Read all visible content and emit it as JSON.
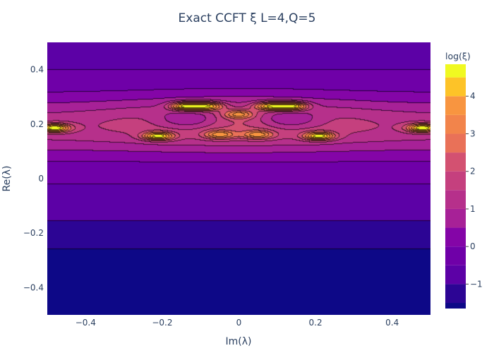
{
  "chart_data": {
    "type": "contour",
    "title": "Exact CCFT ξ L=4,Q=5",
    "xlabel": "Im(λ)",
    "ylabel": "Re(λ)",
    "xlim": [
      -0.5,
      0.5
    ],
    "ylim": [
      -0.5,
      0.5
    ],
    "x_ticks": [
      {
        "value": -0.4,
        "label": "−0.4"
      },
      {
        "value": -0.2,
        "label": "−0.2"
      },
      {
        "value": 0,
        "label": "0"
      },
      {
        "value": 0.2,
        "label": "0.2"
      },
      {
        "value": 0.4,
        "label": "0.4"
      }
    ],
    "y_ticks": [
      {
        "value": 0.4,
        "label": "0.4"
      },
      {
        "value": 0.2,
        "label": "0.2"
      },
      {
        "value": 0,
        "label": "0"
      },
      {
        "value": -0.2,
        "label": "−0.2"
      },
      {
        "value": -0.4,
        "label": "−0.4"
      }
    ],
    "colorbar": {
      "title": "log(ξ)",
      "range": [
        -1.65,
        4.85
      ],
      "ticks": [
        {
          "value": -1,
          "label": "−1"
        },
        {
          "value": 0,
          "label": "0"
        },
        {
          "value": 1,
          "label": "1"
        },
        {
          "value": 2,
          "label": "2"
        },
        {
          "value": 3,
          "label": "3"
        },
        {
          "value": 4,
          "label": "4"
        }
      ]
    },
    "contour_start": -1.5,
    "contour_step": 0.5,
    "contour_levels": 13,
    "colorscale": [
      "#0d0887",
      "#2c0594",
      "#46039f",
      "#5c01a6",
      "#6f00a8",
      "#8405a7",
      "#9511a1",
      "#a72197",
      "#b6308b",
      "#c5407e",
      "#d35171",
      "#de6164",
      "#e97158",
      "#f2844b",
      "#f89540",
      "#fca835",
      "#fdc328",
      "#f0f921"
    ],
    "peaks": [
      {
        "x": -0.48,
        "y": 0.185,
        "log_xi": 4.5
      },
      {
        "x": 0.48,
        "y": 0.185,
        "log_xi": 4.5
      },
      {
        "x": -0.14,
        "y": 0.265,
        "log_xi": 4.4
      },
      {
        "x": -0.08,
        "y": 0.265,
        "log_xi": 4.0
      },
      {
        "x": 0.08,
        "y": 0.265,
        "log_xi": 4.0
      },
      {
        "x": 0.14,
        "y": 0.265,
        "log_xi": 4.4
      },
      {
        "x": -0.21,
        "y": 0.155,
        "log_xi": 4.2
      },
      {
        "x": 0.21,
        "y": 0.155,
        "log_xi": 4.2
      },
      {
        "x": -0.05,
        "y": 0.16,
        "log_xi": 3.0
      },
      {
        "x": 0.05,
        "y": 0.16,
        "log_xi": 3.0
      },
      {
        "x": 0.0,
        "y": 0.235,
        "log_xi": 2.9
      }
    ],
    "valleys": [
      {
        "x": -0.13,
        "y": 0.215,
        "log_xi": -0.2
      },
      {
        "x": 0.13,
        "y": 0.215,
        "log_xi": -0.2
      }
    ]
  }
}
